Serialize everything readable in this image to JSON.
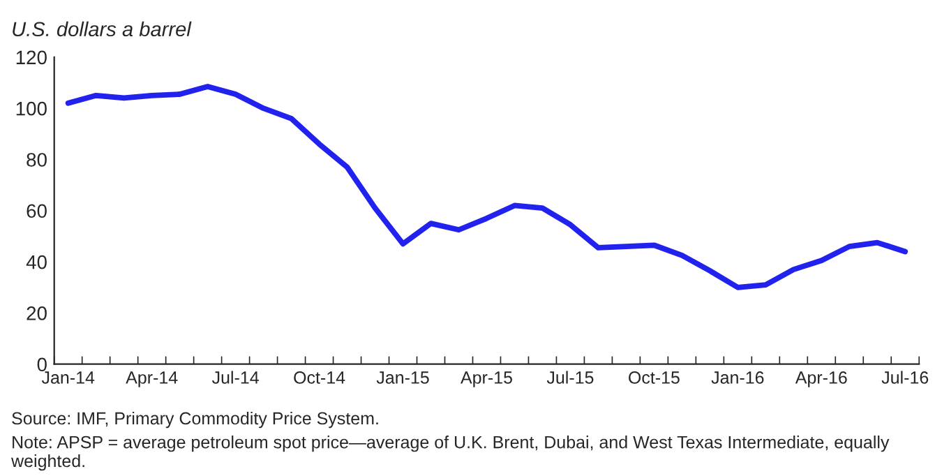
{
  "chart_data": {
    "type": "line",
    "title": "U.S. dollars a barrel",
    "categories": [
      "Jan-14",
      null,
      null,
      "Apr-14",
      null,
      null,
      "Jul-14",
      null,
      null,
      "Oct-14",
      null,
      null,
      "Jan-15",
      null,
      null,
      "Apr-15",
      null,
      null,
      "Jul-15",
      null,
      null,
      "Oct-15",
      null,
      null,
      "Jan-16",
      null,
      null,
      "Apr-16",
      null,
      null,
      "Jul-16"
    ],
    "series": [
      {
        "color": "#2222ee",
        "values": [
          102,
          105,
          104,
          105,
          105.5,
          108.5,
          105.5,
          100,
          96,
          86,
          77,
          61,
          47,
          55,
          52.5,
          57,
          62,
          61,
          54.5,
          45.5,
          46,
          46.5,
          42.5,
          36.5,
          30,
          31,
          37,
          40.5,
          46,
          47.5,
          44
        ]
      }
    ],
    "ylim": [
      0,
      120
    ],
    "yticks": [
      0,
      20,
      40,
      60,
      80,
      100,
      120
    ],
    "grid": false,
    "legend": false,
    "marker": "none",
    "line_style": "solid",
    "annotations": [
      "Source: IMF, Primary Commodity Price System.",
      "Note: APSP = average petroleum spot price—average of U.K. Brent, Dubai, and West Texas Intermediate, equally weighted."
    ]
  }
}
